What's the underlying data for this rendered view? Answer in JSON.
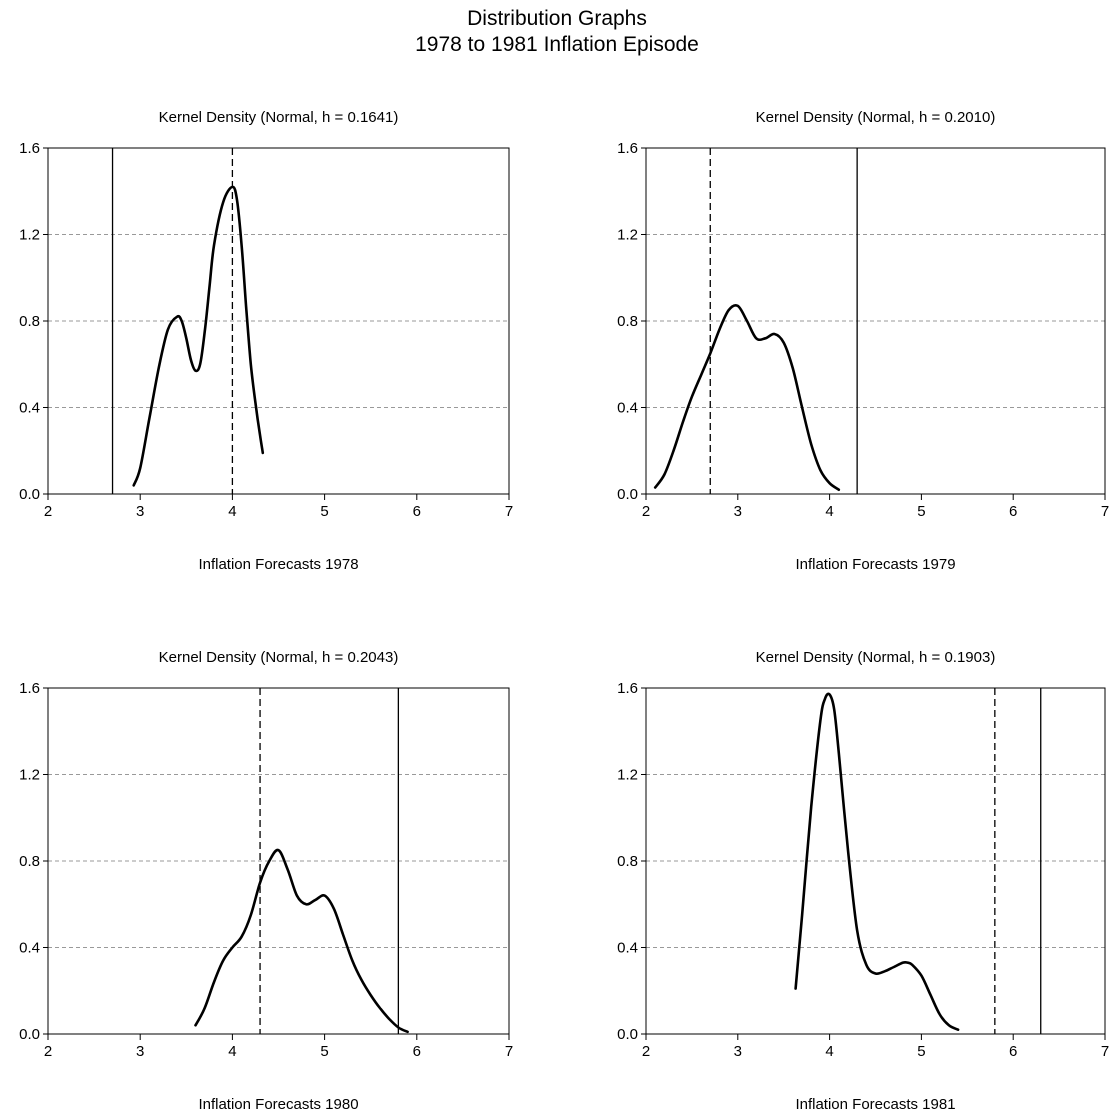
{
  "page": {
    "title_line1": "Distribution Graphs",
    "title_line2": "1978 to 1981 Inflation Episode"
  },
  "chart_data": [
    {
      "type": "line",
      "title": "Kernel Density (Normal, h =  0.1641)",
      "xlabel": "Inflation Forecasts 1978",
      "ylabel": "",
      "xlim": [
        2,
        7
      ],
      "ylim": [
        0,
        1.6
      ],
      "xticks": [
        2,
        3,
        4,
        5,
        6,
        7
      ],
      "yticks": [
        0.0,
        0.4,
        0.8,
        1.2,
        1.6
      ],
      "ytick_labels": [
        "0.0",
        "0.4",
        "0.8",
        "1.2",
        "1.6"
      ],
      "grid": "horizontal dashed",
      "vlines": [
        {
          "x": 2.7,
          "style": "solid"
        },
        {
          "x": 4.0,
          "style": "dashed"
        }
      ],
      "series": [
        {
          "x": [
            2.93,
            3.0,
            3.1,
            3.2,
            3.3,
            3.4,
            3.45,
            3.5,
            3.55,
            3.6,
            3.65,
            3.7,
            3.75,
            3.8,
            3.9,
            4.0,
            4.05,
            4.1,
            4.15,
            4.2,
            4.25,
            4.3,
            4.33
          ],
          "y": [
            0.04,
            0.12,
            0.35,
            0.58,
            0.76,
            0.82,
            0.8,
            0.72,
            0.62,
            0.57,
            0.6,
            0.75,
            0.95,
            1.15,
            1.35,
            1.42,
            1.36,
            1.15,
            0.86,
            0.6,
            0.42,
            0.27,
            0.19
          ]
        }
      ]
    },
    {
      "type": "line",
      "title": "Kernel Density (Normal, h =  0.2010)",
      "xlabel": "Inflation Forecasts 1979",
      "ylabel": "",
      "xlim": [
        2,
        7
      ],
      "ylim": [
        0,
        1.6
      ],
      "xticks": [
        2,
        3,
        4,
        5,
        6,
        7
      ],
      "yticks": [
        0.0,
        0.4,
        0.8,
        1.2,
        1.6
      ],
      "ytick_labels": [
        "0.0",
        "0.4",
        "0.8",
        "1.2",
        "1.6"
      ],
      "grid": "horizontal dashed",
      "vlines": [
        {
          "x": 2.7,
          "style": "dashed"
        },
        {
          "x": 4.3,
          "style": "solid"
        }
      ],
      "series": [
        {
          "x": [
            2.1,
            2.2,
            2.3,
            2.4,
            2.5,
            2.6,
            2.7,
            2.8,
            2.9,
            3.0,
            3.1,
            3.2,
            3.3,
            3.4,
            3.5,
            3.6,
            3.7,
            3.8,
            3.9,
            4.0,
            4.1
          ],
          "y": [
            0.03,
            0.09,
            0.2,
            0.33,
            0.45,
            0.55,
            0.65,
            0.76,
            0.85,
            0.87,
            0.8,
            0.72,
            0.72,
            0.74,
            0.7,
            0.58,
            0.4,
            0.23,
            0.11,
            0.05,
            0.02
          ]
        }
      ]
    },
    {
      "type": "line",
      "title": "Kernel Density (Normal, h =  0.2043)",
      "xlabel": "Inflation Forecasts 1980",
      "ylabel": "",
      "xlim": [
        2,
        7
      ],
      "ylim": [
        0,
        1.6
      ],
      "xticks": [
        2,
        3,
        4,
        5,
        6,
        7
      ],
      "yticks": [
        0.0,
        0.4,
        0.8,
        1.2,
        1.6
      ],
      "ytick_labels": [
        "0.0",
        "0.4",
        "0.8",
        "1.2",
        "1.6"
      ],
      "grid": "horizontal dashed",
      "vlines": [
        {
          "x": 4.3,
          "style": "dashed"
        },
        {
          "x": 5.8,
          "style": "solid"
        }
      ],
      "series": [
        {
          "x": [
            3.6,
            3.7,
            3.8,
            3.9,
            4.0,
            4.1,
            4.2,
            4.3,
            4.4,
            4.5,
            4.6,
            4.7,
            4.8,
            4.9,
            5.0,
            5.1,
            5.2,
            5.3,
            5.4,
            5.5,
            5.6,
            5.7,
            5.8,
            5.9
          ],
          "y": [
            0.04,
            0.12,
            0.24,
            0.34,
            0.4,
            0.45,
            0.55,
            0.7,
            0.8,
            0.85,
            0.76,
            0.64,
            0.6,
            0.62,
            0.64,
            0.58,
            0.46,
            0.34,
            0.25,
            0.18,
            0.12,
            0.07,
            0.03,
            0.01
          ]
        }
      ]
    },
    {
      "type": "line",
      "title": "Kernel Density (Normal, h =  0.1903)",
      "xlabel": "Inflation Forecasts 1981",
      "ylabel": "",
      "xlim": [
        2,
        7
      ],
      "ylim": [
        0,
        1.6
      ],
      "xticks": [
        2,
        3,
        4,
        5,
        6,
        7
      ],
      "yticks": [
        0.0,
        0.4,
        0.8,
        1.2,
        1.6
      ],
      "ytick_labels": [
        "0.0",
        "0.4",
        "0.8",
        "1.2",
        "1.6"
      ],
      "grid": "horizontal dashed",
      "vlines": [
        {
          "x": 5.8,
          "style": "dashed"
        },
        {
          "x": 6.3,
          "style": "solid"
        }
      ],
      "series": [
        {
          "x": [
            3.63,
            3.7,
            3.8,
            3.9,
            3.95,
            4.0,
            4.05,
            4.1,
            4.2,
            4.3,
            4.4,
            4.5,
            4.6,
            4.7,
            4.8,
            4.85,
            4.9,
            5.0,
            5.1,
            5.2,
            5.3,
            5.4
          ],
          "y": [
            0.21,
            0.55,
            1.05,
            1.45,
            1.55,
            1.57,
            1.5,
            1.3,
            0.85,
            0.48,
            0.32,
            0.28,
            0.29,
            0.31,
            0.33,
            0.33,
            0.32,
            0.27,
            0.18,
            0.09,
            0.04,
            0.02
          ]
        }
      ]
    }
  ]
}
